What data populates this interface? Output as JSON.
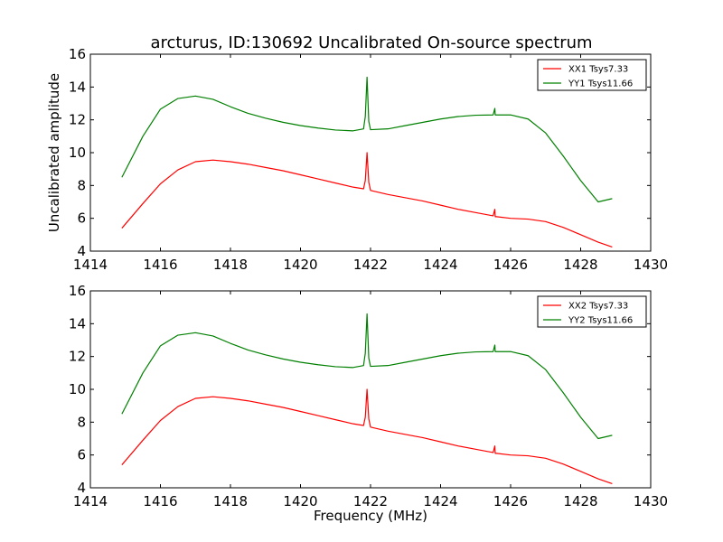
{
  "title": "arcturus, ID:130692 Uncalibrated On-source spectrum",
  "ylabel": "Uncalibrated amplitude",
  "xlabel": "Frequency (MHz)",
  "chart_data": [
    {
      "type": "line",
      "xlim": [
        1414,
        1430
      ],
      "ylim": [
        4,
        16
      ],
      "x_ticks": [
        1414,
        1416,
        1418,
        1420,
        1422,
        1424,
        1426,
        1428,
        1430
      ],
      "y_ticks": [
        4,
        6,
        8,
        10,
        12,
        14,
        16
      ],
      "legend_position": "top-right",
      "series": [
        {
          "name": "XX1 Tsys7.33",
          "color": "#ff0000",
          "x": [
            1414.9,
            1415.5,
            1416.0,
            1416.5,
            1417.0,
            1417.5,
            1418.0,
            1418.5,
            1419.0,
            1419.5,
            1420.0,
            1420.5,
            1421.0,
            1421.5,
            1421.8,
            1421.85,
            1421.9,
            1421.95,
            1422.0,
            1422.5,
            1423.0,
            1423.5,
            1424.0,
            1424.5,
            1425.0,
            1425.5,
            1425.55,
            1425.56,
            1425.6,
            1426.0,
            1426.5,
            1427.0,
            1427.5,
            1428.0,
            1428.5,
            1428.9
          ],
          "values": [
            5.4,
            6.9,
            8.1,
            8.95,
            9.45,
            9.55,
            9.45,
            9.3,
            9.1,
            8.9,
            8.65,
            8.4,
            8.15,
            7.9,
            7.8,
            8.3,
            10.0,
            8.2,
            7.7,
            7.45,
            7.25,
            7.05,
            6.8,
            6.55,
            6.35,
            6.15,
            6.55,
            6.1,
            6.1,
            6.0,
            5.95,
            5.8,
            5.45,
            5.0,
            4.55,
            4.25
          ]
        },
        {
          "name": "YY1 Tsys11.66",
          "color": "#008000",
          "x": [
            1414.9,
            1415.5,
            1416.0,
            1416.5,
            1417.0,
            1417.5,
            1418.0,
            1418.5,
            1419.0,
            1419.5,
            1420.0,
            1420.5,
            1421.0,
            1421.5,
            1421.8,
            1421.85,
            1421.9,
            1421.95,
            1422.0,
            1422.5,
            1423.0,
            1423.5,
            1424.0,
            1424.5,
            1425.0,
            1425.5,
            1425.55,
            1425.56,
            1425.6,
            1426.0,
            1426.5,
            1427.0,
            1427.5,
            1428.0,
            1428.5,
            1428.9
          ],
          "values": [
            8.5,
            11.0,
            12.65,
            13.3,
            13.45,
            13.25,
            12.8,
            12.4,
            12.1,
            11.85,
            11.65,
            11.5,
            11.38,
            11.33,
            11.45,
            12.2,
            14.6,
            11.9,
            11.4,
            11.45,
            11.65,
            11.85,
            12.05,
            12.2,
            12.28,
            12.3,
            12.7,
            12.3,
            12.3,
            12.3,
            12.05,
            11.2,
            9.8,
            8.3,
            7.0,
            7.2
          ]
        }
      ]
    },
    {
      "type": "line",
      "xlim": [
        1414,
        1430
      ],
      "ylim": [
        4,
        16
      ],
      "x_ticks": [
        1414,
        1416,
        1418,
        1420,
        1422,
        1424,
        1426,
        1428,
        1430
      ],
      "y_ticks": [
        4,
        6,
        8,
        10,
        12,
        14,
        16
      ],
      "legend_position": "top-right",
      "series": [
        {
          "name": "XX2 Tsys7.33",
          "color": "#ff0000",
          "x": [
            1414.9,
            1415.5,
            1416.0,
            1416.5,
            1417.0,
            1417.5,
            1418.0,
            1418.5,
            1419.0,
            1419.5,
            1420.0,
            1420.5,
            1421.0,
            1421.5,
            1421.8,
            1421.85,
            1421.9,
            1421.95,
            1422.0,
            1422.5,
            1423.0,
            1423.5,
            1424.0,
            1424.5,
            1425.0,
            1425.5,
            1425.55,
            1425.56,
            1425.6,
            1426.0,
            1426.5,
            1427.0,
            1427.5,
            1428.0,
            1428.5,
            1428.9
          ],
          "values": [
            5.4,
            6.9,
            8.1,
            8.95,
            9.45,
            9.55,
            9.45,
            9.3,
            9.1,
            8.9,
            8.65,
            8.4,
            8.15,
            7.9,
            7.8,
            8.3,
            10.0,
            8.2,
            7.7,
            7.45,
            7.25,
            7.05,
            6.8,
            6.55,
            6.35,
            6.15,
            6.55,
            6.1,
            6.1,
            6.0,
            5.95,
            5.8,
            5.45,
            5.0,
            4.55,
            4.25
          ]
        },
        {
          "name": "YY2 Tsys11.66",
          "color": "#008000",
          "x": [
            1414.9,
            1415.5,
            1416.0,
            1416.5,
            1417.0,
            1417.5,
            1418.0,
            1418.5,
            1419.0,
            1419.5,
            1420.0,
            1420.5,
            1421.0,
            1421.5,
            1421.8,
            1421.85,
            1421.9,
            1421.95,
            1422.0,
            1422.5,
            1423.0,
            1423.5,
            1424.0,
            1424.5,
            1425.0,
            1425.5,
            1425.55,
            1425.56,
            1425.6,
            1426.0,
            1426.5,
            1427.0,
            1427.5,
            1428.0,
            1428.5,
            1428.9
          ],
          "values": [
            8.5,
            11.0,
            12.65,
            13.3,
            13.45,
            13.25,
            12.8,
            12.4,
            12.1,
            11.85,
            11.65,
            11.5,
            11.38,
            11.33,
            11.45,
            12.2,
            14.6,
            11.9,
            11.4,
            11.45,
            11.65,
            11.85,
            12.05,
            12.2,
            12.28,
            12.3,
            12.7,
            12.3,
            12.3,
            12.3,
            12.05,
            11.2,
            9.8,
            8.3,
            7.0,
            7.2
          ]
        }
      ]
    }
  ]
}
